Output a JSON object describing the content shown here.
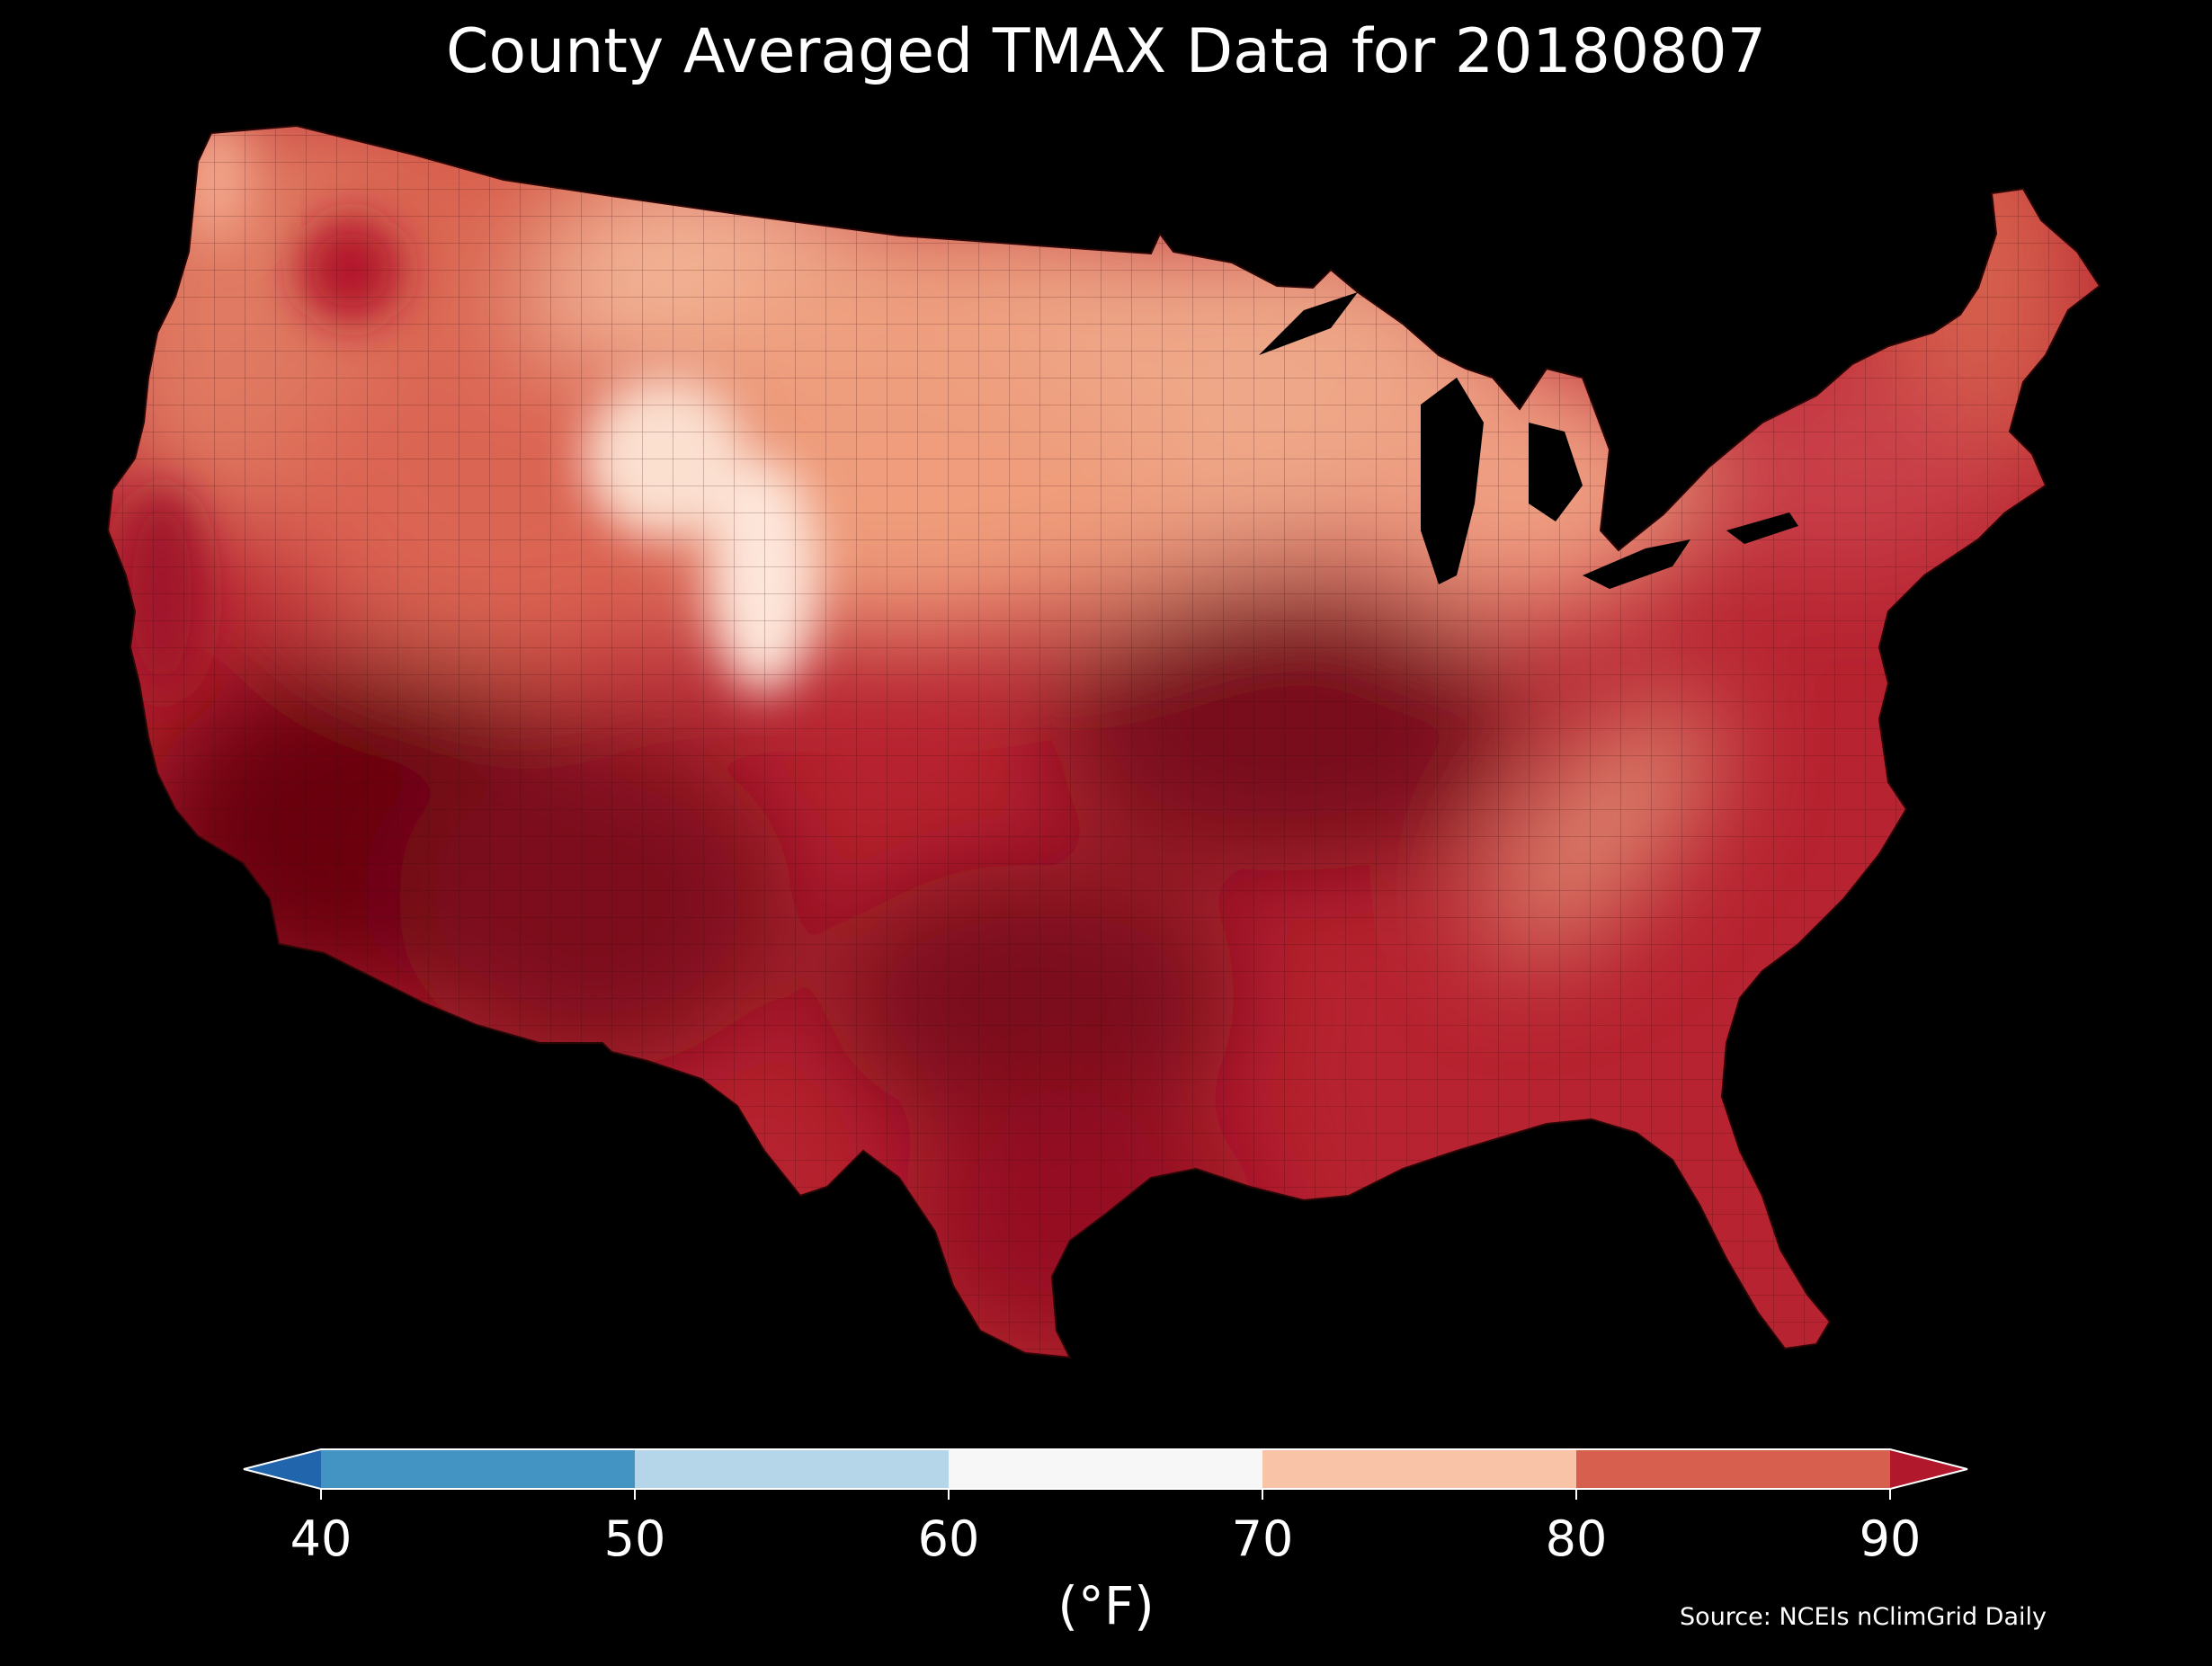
{
  "title": "County Averaged TMAX Data for 20180807",
  "colorbar": {
    "label": "(°F)",
    "ticks": [
      "40",
      "50",
      "60",
      "70",
      "80",
      "90"
    ],
    "bins": [
      {
        "range": "<40",
        "color": "#2166ac"
      },
      {
        "range": "40-50",
        "color": "#4393c3"
      },
      {
        "range": "50-60",
        "color": "#b4d6e8"
      },
      {
        "range": "60-70",
        "color": "#f7f7f7"
      },
      {
        "range": "70-80",
        "color": "#f8c3a7"
      },
      {
        "range": "80-90",
        "color": "#d6604d"
      },
      {
        "range": ">90",
        "color": "#b2182b"
      }
    ],
    "extend": "both"
  },
  "source": "Source: NCEIs nClimGrid Daily",
  "map": {
    "region": "Contiguous United States",
    "variable": "TMAX",
    "units": "°F",
    "unit_level": "county",
    "date": "20180807",
    "background_color": "#000000"
  }
}
